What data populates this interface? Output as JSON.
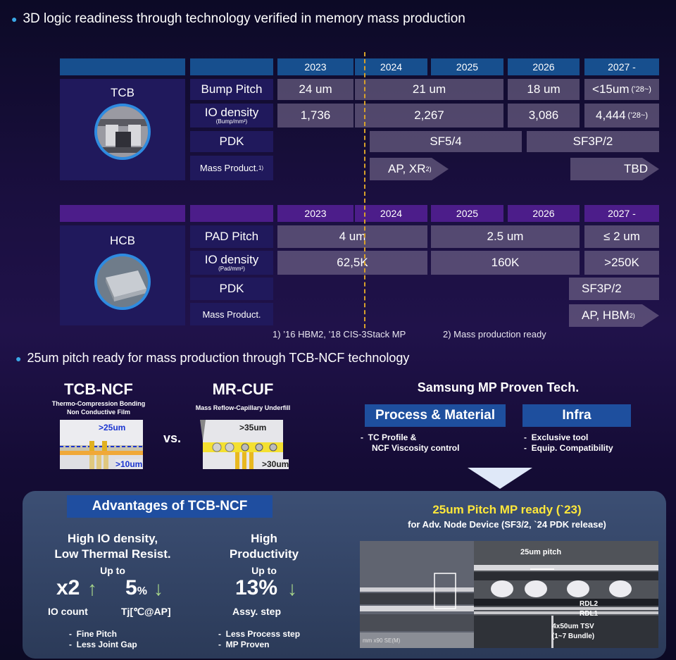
{
  "top_header": "3D logic readiness through technology verified in memory mass production",
  "tcb": {
    "title": "TCB",
    "years": [
      "2023",
      "2024",
      "2025",
      "2026",
      "2027 -"
    ],
    "bump_pitch": {
      "label": "Bump Pitch",
      "v2023": "24 um",
      "v2024_25": "21 um",
      "v2026": "18 um",
      "v2027": "<15um",
      "v2027_note": "(’28~)"
    },
    "io_density": {
      "label": "IO density",
      "unit": "(Bump/mm²)",
      "v2023": "1,736",
      "v2024_25": "2,267",
      "v2026": "3,086",
      "v2027": "4,444",
      "v2027_note": "(’28~)"
    },
    "pdk": {
      "label": "PDK",
      "a": "SF5/4",
      "b": "SF3P/2"
    },
    "mass": {
      "label": "Mass Product.",
      "label_sup": "1)",
      "a": "AP, XR",
      "a_sup": "2)",
      "b": "TBD"
    }
  },
  "hcb": {
    "title": "HCB",
    "years": [
      "2023",
      "2024",
      "2025",
      "2026",
      "2027 -"
    ],
    "pad_pitch": {
      "label": "PAD Pitch",
      "a": "4 um",
      "b": "2.5 um",
      "c": "≤ 2 um"
    },
    "io_density": {
      "label": "IO density",
      "unit": "(Pad/mm²)",
      "a": "62,5K",
      "b": "160K",
      "c": ">250K"
    },
    "pdk": {
      "label": "PDK",
      "a": "SF3P/2"
    },
    "mass": {
      "label": "Mass Product.",
      "a": "AP, HBM",
      "a_sup": "2)"
    }
  },
  "footnotes": {
    "n1": "1) ’16 HBM2, ’18 CIS-3Stack MP",
    "n2": "2) Mass production ready"
  },
  "bottom_header": "25um pitch ready for mass production through TCB-NCF technology",
  "tcb_ncf": {
    "title": "TCB-NCF",
    "sub1": "Thermo-Compression Bonding",
    "sub2": "Non Conductive Film",
    "d1": ">25um",
    "d2": ">10um"
  },
  "vs": "vs.",
  "mr_cuf": {
    "title": "MR-CUF",
    "sub": "Mass Reflow-Capillary Underfill",
    "d1": ">35um",
    "d2": ">30um"
  },
  "samsung": {
    "title": "Samsung MP Proven Tech.",
    "pm": {
      "title": "Process & Material",
      "items": [
        "TC Profile &",
        "NCF Viscosity control"
      ]
    },
    "infra": {
      "title": "Infra",
      "items": [
        "Exclusive tool",
        "Equip. Compatibility"
      ]
    }
  },
  "adv": {
    "title": "Advantages of TCB-NCF",
    "c1": {
      "l1": "High IO density,",
      "l2": "Low Thermal Resist.",
      "upto": "Up to",
      "v1": "x2",
      "u1": "",
      "v2": "5",
      "u2": "%",
      "cap1": "IO count",
      "cap2": "Tj[℃@AP]",
      "items": [
        "Fine Pitch",
        "Less Joint Gap"
      ]
    },
    "c2": {
      "l1": "High",
      "l2": "Productivity",
      "upto": "Up to",
      "v": "13%",
      "cap": "Assy. step",
      "items": [
        "Less Process step",
        "MP Proven"
      ]
    }
  },
  "mp": {
    "title": "25um Pitch MP ready (`23)",
    "sub": "for Adv. Node Device (SF3/2, `24 PDK release)",
    "pitch": "25um pitch",
    "rdl2": "RDL2",
    "rdl1": "RDL1",
    "tsv1": "4x50um TSV",
    "tsv2": "(1~7 Bundle)",
    "sem": "mm x90 SE(M)"
  },
  "colors": {
    "blue_cell": "#174f8e",
    "purple_cell": "#4c1d8a",
    "gray_cell": "#786c8e",
    "accent_yellow": "#ffe83a",
    "title_blue": "#1e4f9e"
  }
}
